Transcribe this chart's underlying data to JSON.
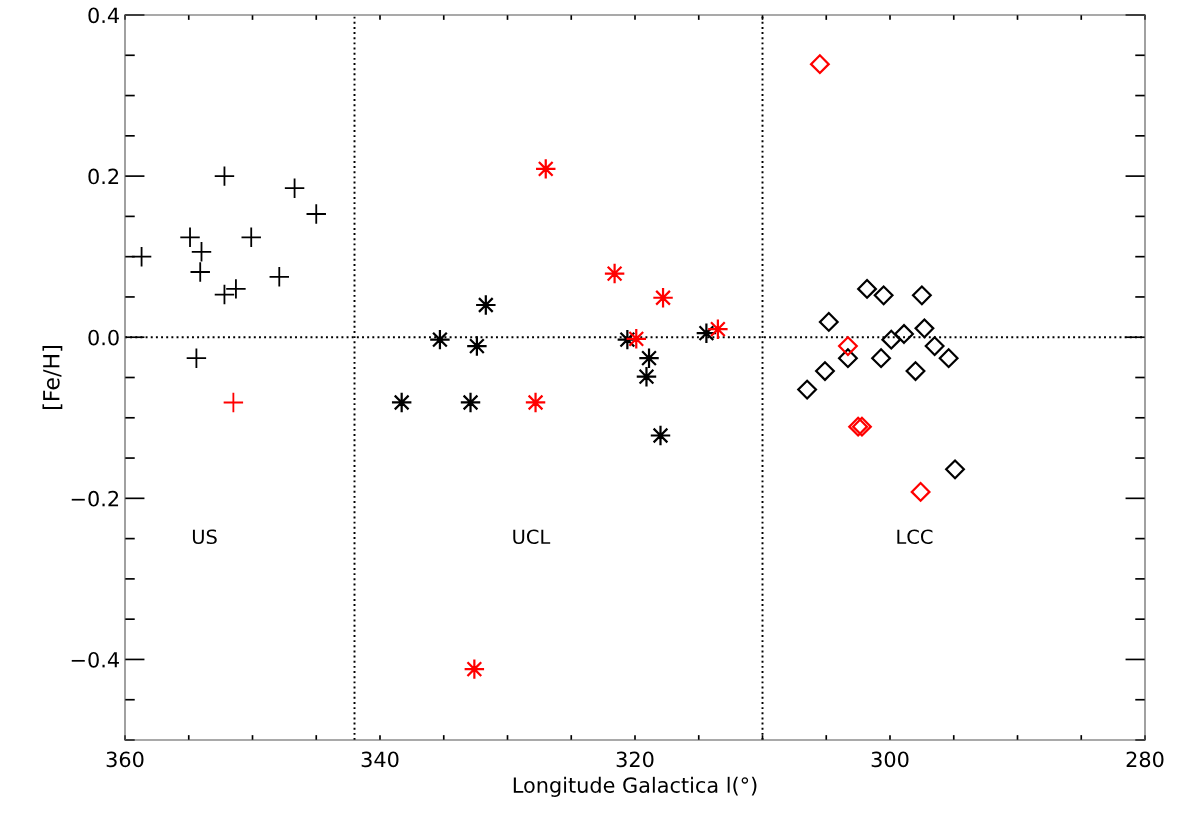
{
  "chart_data": {
    "type": "scatter",
    "xlabel": "Longitude Galactica l(°)",
    "ylabel": "[Fe/H]",
    "xlim": [
      360,
      280
    ],
    "ylim": [
      -0.5,
      0.4
    ],
    "xticks": [
      360,
      {
        "value": 355,
        "label": null
      },
      {
        "value": 350,
        "label": null
      },
      {
        "value": 345,
        "label": null
      },
      340,
      {
        "value": 335,
        "label": null
      },
      {
        "value": 330,
        "label": null
      },
      {
        "value": 325,
        "label": null
      },
      320,
      {
        "value": 315,
        "label": null
      },
      {
        "value": 310,
        "label": null
      },
      {
        "value": 305,
        "label": null
      },
      300,
      {
        "value": 295,
        "label": null
      },
      {
        "value": 290,
        "label": null
      },
      {
        "value": 285,
        "label": null
      },
      280
    ],
    "yticks": [
      {
        "value": -0.5,
        "label": null
      },
      {
        "value": -0.45,
        "label": null
      },
      {
        "value": -0.4,
        "label": "−0.4"
      },
      {
        "value": -0.35,
        "label": null
      },
      {
        "value": -0.3,
        "label": null
      },
      {
        "value": -0.25,
        "label": null
      },
      {
        "value": -0.2,
        "label": "−0.2"
      },
      {
        "value": -0.15,
        "label": null
      },
      {
        "value": -0.1,
        "label": null
      },
      {
        "value": -0.05,
        "label": null
      },
      {
        "value": 0,
        "label": "0.0"
      },
      {
        "value": 0.05,
        "label": null
      },
      {
        "value": 0.1,
        "label": null
      },
      {
        "value": 0.15,
        "label": null
      },
      {
        "value": 0.2,
        "label": "0.2"
      },
      {
        "value": 0.25,
        "label": null
      },
      {
        "value": 0.3,
        "label": null
      },
      {
        "value": 0.35,
        "label": null
      },
      {
        "value": 0.4,
        "label": "0.4"
      }
    ],
    "grid": false,
    "legend": false,
    "ref_lines": [
      {
        "axis": "x",
        "value": 342,
        "line_style": "dotted",
        "color": "#000000"
      },
      {
        "axis": "x",
        "value": 310,
        "line_style": "dotted",
        "color": "#000000"
      },
      {
        "axis": "y",
        "value": 0,
        "line_style": "dotted",
        "color": "#000000"
      }
    ],
    "annotations": [
      "US",
      "UCL",
      "LCC"
    ],
    "series": [
      {
        "marker": "cross",
        "color": "#000000",
        "x": [
          358.7,
          352.2,
          346.7,
          345.0,
          354.9,
          354.0,
          350.1,
          354.1,
          347.9,
          352.2,
          351.3,
          354.4
        ],
        "values": [
          0.1,
          0.2,
          0.185,
          0.153,
          0.124,
          0.106,
          0.124,
          0.081,
          0.075,
          0.053,
          0.06,
          -0.026
        ]
      },
      {
        "marker": "cross",
        "color": "#ff0000",
        "x": [
          351.5
        ],
        "values": [
          -0.081
        ]
      },
      {
        "marker": "star",
        "color": "#000000",
        "x": [
          331.7,
          335.3,
          332.4,
          338.3,
          332.9,
          320.6,
          314.4,
          318.9,
          319.1,
          318.0
        ],
        "values": [
          0.04,
          -0.003,
          -0.011,
          -0.081,
          -0.081,
          -0.003,
          0.005,
          -0.026,
          -0.049,
          -0.122
        ]
      },
      {
        "marker": "star",
        "color": "#ff0000",
        "x": [
          327.0,
          321.6,
          317.8,
          313.5,
          319.9,
          327.8,
          332.6
        ],
        "values": [
          0.209,
          0.079,
          0.049,
          0.01,
          -0.002,
          -0.081,
          -0.412
        ]
      },
      {
        "marker": "diamond",
        "color": "#000000",
        "x": [
          301.8,
          300.5,
          297.5,
          304.8,
          297.3,
          298.9,
          299.9,
          296.5,
          303.3,
          300.7,
          295.4,
          305.1,
          298.0,
          306.5,
          294.9
        ],
        "values": [
          0.06,
          0.052,
          0.052,
          0.019,
          0.011,
          0.004,
          -0.003,
          -0.011,
          -0.026,
          -0.026,
          -0.026,
          -0.042,
          -0.042,
          -0.065,
          -0.164
        ]
      },
      {
        "marker": "diamond",
        "color": "#ff0000",
        "x": [
          305.5,
          303.3,
          302.5,
          302.2,
          297.6
        ],
        "values": [
          0.339,
          -0.011,
          -0.111,
          -0.111,
          -0.192
        ]
      }
    ]
  }
}
